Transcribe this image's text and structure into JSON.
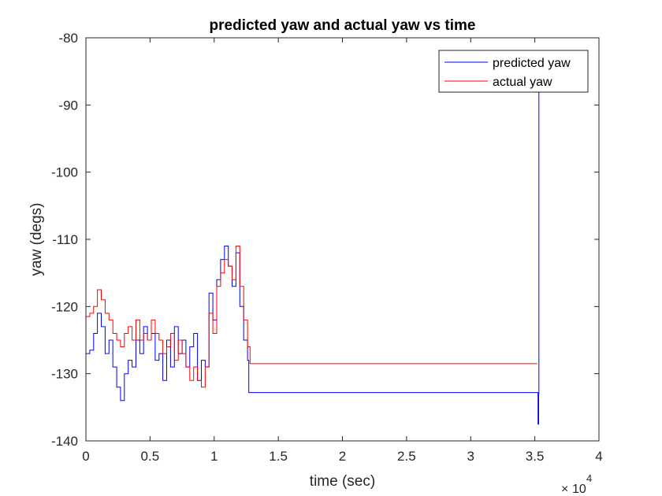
{
  "chart_data": {
    "type": "line",
    "title": "predicted yaw and actual yaw vs time",
    "xlabel": "time (sec)",
    "ylabel": "yaw (degs)",
    "x_exponent_label": "10",
    "x_exponent_power": "4",
    "xlim": [
      0,
      40000
    ],
    "ylim": [
      -140,
      -80
    ],
    "xticks": [
      0,
      5000,
      10000,
      15000,
      20000,
      25000,
      30000,
      35000,
      40000
    ],
    "xtick_labels": [
      "0",
      "0.5",
      "1",
      "1.5",
      "2",
      "2.5",
      "3",
      "3.5",
      "4"
    ],
    "yticks": [
      -140,
      -130,
      -120,
      -110,
      -100,
      -90,
      -80
    ],
    "ytick_labels": [
      "-140",
      "-130",
      "-120",
      "-110",
      "-100",
      "-90",
      "-80"
    ],
    "grid": false,
    "legend_position": "top-right",
    "series": [
      {
        "name": "predicted yaw",
        "color": "#0000ff",
        "x": [
          0,
          300,
          600,
          900,
          1200,
          1500,
          1800,
          2100,
          2400,
          2700,
          3000,
          3300,
          3600,
          3900,
          4200,
          4500,
          4800,
          5100,
          5400,
          5700,
          6000,
          6300,
          6600,
          6900,
          7200,
          7500,
          7800,
          8100,
          8400,
          8700,
          9000,
          9300,
          9600,
          9900,
          10200,
          10500,
          10800,
          11100,
          11400,
          11700,
          12000,
          12300,
          12600,
          12700,
          35200,
          35250,
          35300,
          35320
        ],
        "y": [
          -127,
          -126.5,
          -124,
          -121,
          -123,
          -127,
          -125,
          -129,
          -132,
          -134,
          -130,
          -128,
          -129,
          -125,
          -127,
          -123,
          -125,
          -124,
          -128,
          -127,
          -131,
          -125,
          -129,
          -123,
          -127,
          -125,
          -129,
          -126,
          -124,
          -131,
          -128,
          -129,
          -118,
          -122,
          -116,
          -113,
          -111,
          -114,
          -117,
          -112,
          -120,
          -125,
          -128,
          -132.8,
          -132.8,
          -137.5,
          -133,
          -88
        ]
      },
      {
        "name": "actual yaw",
        "color": "#ff0000",
        "x": [
          0,
          300,
          600,
          900,
          1200,
          1500,
          1800,
          2100,
          2400,
          2700,
          3000,
          3300,
          3600,
          3900,
          4200,
          4500,
          4800,
          5100,
          5400,
          5700,
          6000,
          6300,
          6600,
          6900,
          7200,
          7500,
          7800,
          8100,
          8400,
          8700,
          9000,
          9300,
          9600,
          9900,
          10200,
          10500,
          10800,
          11100,
          11400,
          11700,
          12000,
          12300,
          12600,
          12800,
          35200
        ],
        "y": [
          -121.5,
          -121,
          -120,
          -117.5,
          -119,
          -121,
          -122,
          -124,
          -125,
          -126,
          -124,
          -123,
          -125,
          -122,
          -125,
          -124,
          -125,
          -122,
          -124,
          -125,
          -127,
          -126,
          -124,
          -128,
          -125,
          -127,
          -129,
          -131,
          -129,
          -131,
          -132,
          -129,
          -121,
          -124,
          -117,
          -115,
          -113,
          -114,
          -116,
          -111,
          -117,
          -122,
          -126,
          -128.5,
          -128.5
        ]
      }
    ]
  }
}
